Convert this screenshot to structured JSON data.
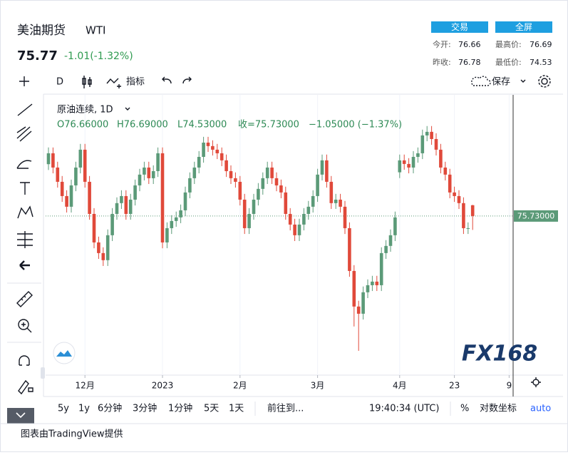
{
  "header": {
    "title": "美油期货",
    "symbol": "WTI",
    "price": "75.77",
    "change": "-1.01(-1.32%)",
    "buttons": [
      "交易",
      "全屏"
    ],
    "stats": [
      [
        "今开:",
        "76.66"
      ],
      [
        "最高价:",
        "76.69"
      ],
      [
        "昨收:",
        "76.78"
      ],
      [
        "最低价:",
        "74.53"
      ]
    ]
  },
  "toolbar": {
    "interval": "D",
    "indicators": "指标",
    "save": "保存"
  },
  "chart_data": {
    "type": "candlestick",
    "title": "原油连续, 1D",
    "legend": [
      "O76.66000",
      "H76.69000",
      "L74.53000",
      "收=75.73000",
      "−1.05000 (−1.37%)"
    ],
    "categories": [
      null,
      null,
      null,
      null,
      null,
      null,
      null,
      null,
      "12月",
      null,
      null,
      null,
      null,
      null,
      null,
      null,
      null,
      null,
      null,
      null,
      null,
      null,
      null,
      null,
      null,
      "2023",
      null,
      null,
      null,
      null,
      null,
      null,
      null,
      null,
      null,
      null,
      null,
      null,
      null,
      null,
      null,
      null,
      "2月",
      null,
      null,
      null,
      null,
      null,
      null,
      null,
      null,
      null,
      null,
      null,
      null,
      null,
      null,
      null,
      null,
      "3月",
      null,
      null,
      null,
      null,
      null,
      null,
      null,
      null,
      null,
      null,
      null,
      null,
      null,
      null,
      null,
      null,
      null,
      "4月",
      null,
      null,
      null,
      null,
      null,
      null,
      null,
      null,
      null,
      null,
      null,
      "23",
      null,
      null,
      null,
      null,
      null,
      null,
      null,
      null,
      null,
      null,
      null,
      "9"
    ],
    "open": [
      80.2,
      81.14,
      79.91,
      78.68,
      77.45,
      76.53,
      78.37,
      79.91,
      81.45,
      78.68,
      75.91,
      73.45,
      72.53,
      71.92,
      74.07,
      75.91,
      76.84,
      77.45,
      75.91,
      77.14,
      78.37,
      79.3,
      79.91,
      78.99,
      79.6,
      81.14,
      73.45,
      74.68,
      75.3,
      75.61,
      76.22,
      77.76,
      78.99,
      79.91,
      80.83,
      82.06,
      81.76,
      81.45,
      81.14,
      80.53,
      79.6,
      78.99,
      78.68,
      77.14,
      74.68,
      75.91,
      77.14,
      78.07,
      78.99,
      79.91,
      78.99,
      78.37,
      77.76,
      75.91,
      74.99,
      74.07,
      74.99,
      75.91,
      76.53,
      77.45,
      79.3,
      80.53,
      78.68,
      76.84,
      77.14,
      76.53,
      74.68,
      70.99,
      67.92,
      67.3,
      69.15,
      69.76,
      70.07,
      69.76,
      72.53,
      73.15,
      74.07,
      79.5,
      80.53,
      80.22,
      79.91,
      80.83,
      81.14,
      82.68,
      82.99,
      82.37,
      81.45,
      79.91,
      79.3,
      77.76,
      77.45,
      76.84,
      74.68,
      76.66,
      null,
      null,
      null,
      null,
      null,
      null,
      null,
      null
    ],
    "high": [
      81.64,
      81.64,
      80.41,
      79.18,
      77.95,
      78.87,
      80.41,
      81.95,
      81.95,
      79.18,
      76.41,
      73.95,
      73.03,
      74.57,
      76.41,
      77.34,
      77.95,
      77.95,
      77.64,
      78.87,
      79.8,
      80.41,
      80.41,
      80.1,
      81.64,
      81.64,
      75.18,
      75.8,
      76.11,
      76.72,
      78.26,
      79.49,
      80.41,
      81.33,
      82.56,
      82.56,
      82.26,
      81.95,
      81.64,
      81.03,
      80.1,
      79.49,
      79.18,
      77.64,
      76.41,
      77.64,
      78.57,
      79.49,
      80.41,
      80.41,
      79.49,
      78.87,
      78.26,
      76.41,
      75.49,
      75.49,
      76.41,
      77.03,
      77.95,
      79.8,
      81.03,
      81.03,
      79.18,
      77.64,
      77.64,
      77.03,
      75.18,
      71.49,
      68.42,
      69.65,
      70.26,
      70.57,
      70.57,
      73.03,
      73.65,
      74.57,
      76.11,
      81.03,
      81.03,
      80.72,
      81.33,
      81.64,
      83.18,
      83.49,
      83.49,
      82.87,
      81.95,
      80.41,
      79.8,
      78.26,
      77.95,
      77.34,
      75.18,
      76.69,
      null,
      null,
      null,
      null,
      null,
      null,
      null,
      null
    ],
    "low": [
      79.7,
      79.41,
      78.18,
      76.95,
      76.03,
      76.03,
      77.87,
      79.41,
      78.18,
      75.41,
      72.95,
      72.03,
      71.42,
      71.42,
      73.57,
      75.41,
      76.34,
      75.41,
      75.41,
      76.64,
      77.87,
      78.8,
      78.49,
      78.49,
      79.1,
      72.95,
      72.95,
      74.18,
      74.8,
      75.11,
      75.72,
      77.26,
      78.49,
      79.41,
      80.33,
      81.26,
      80.95,
      80.64,
      80.03,
      79.1,
      78.49,
      78.18,
      76.64,
      74.18,
      74.18,
      75.41,
      76.64,
      77.57,
      78.49,
      78.49,
      77.87,
      77.26,
      75.41,
      74.49,
      73.57,
      73.57,
      74.49,
      75.41,
      76.03,
      76.95,
      78.8,
      78.18,
      76.34,
      76.34,
      76.03,
      74.18,
      70.49,
      66.2,
      64.1,
      66.8,
      68.65,
      69.26,
      69.26,
      69.26,
      72.03,
      72.65,
      73.57,
      79.0,
      79.72,
      79.41,
      79.41,
      80.33,
      80.64,
      82.18,
      81.87,
      80.95,
      79.41,
      78.8,
      77.26,
      76.95,
      76.34,
      74.18,
      74.18,
      74.53,
      null,
      null,
      null,
      null,
      null,
      null,
      null,
      null
    ],
    "close": [
      81.14,
      79.91,
      78.68,
      77.45,
      76.53,
      78.37,
      79.91,
      81.45,
      78.68,
      75.91,
      73.45,
      72.53,
      71.92,
      74.07,
      75.91,
      76.84,
      77.45,
      75.91,
      77.14,
      78.37,
      79.3,
      79.91,
      78.99,
      79.6,
      81.14,
      73.45,
      74.68,
      75.3,
      75.61,
      76.22,
      77.76,
      78.99,
      79.91,
      80.83,
      82.06,
      81.76,
      81.45,
      81.14,
      80.53,
      79.6,
      78.99,
      78.68,
      77.14,
      74.68,
      75.91,
      77.14,
      78.07,
      78.99,
      79.91,
      78.99,
      78.37,
      77.76,
      75.91,
      74.99,
      74.07,
      74.99,
      75.91,
      76.53,
      77.45,
      79.3,
      80.53,
      78.68,
      76.84,
      77.14,
      76.53,
      74.68,
      70.99,
      67.92,
      67.3,
      69.15,
      69.76,
      70.07,
      69.76,
      72.53,
      73.15,
      74.07,
      75.61,
      80.53,
      80.22,
      79.91,
      80.83,
      81.14,
      82.68,
      82.99,
      82.37,
      81.45,
      79.91,
      79.3,
      77.76,
      77.45,
      76.84,
      74.68,
      74.68,
      75.73,
      null,
      null,
      null,
      null,
      null,
      null,
      null,
      null
    ],
    "up_color": "#5b9a78",
    "down_color": "#e0493a",
    "ylim": [
      62.25,
      85.75
    ],
    "grid": true,
    "price_line": {
      "value": 75.73,
      "label": "75.73000"
    },
    "watermark": "FX168"
  },
  "footer": {
    "ranges": [
      "5y",
      "1y",
      "6分钟",
      "3分钟",
      "1分钟",
      "5天",
      "1天"
    ],
    "goto": "前往到...",
    "time": "19:40:34 (UTC)",
    "percent": "%",
    "log": "对数坐标",
    "auto": "auto",
    "credit": "图表由TradingView提供"
  }
}
